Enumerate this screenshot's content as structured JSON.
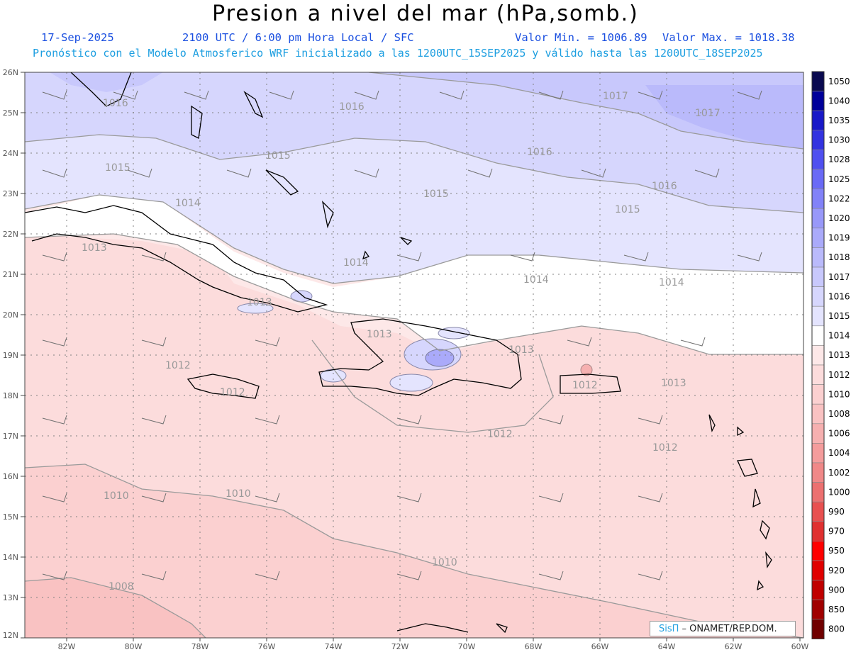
{
  "title": "Presion a nivel del mar (hPa,somb.)",
  "header": {
    "date": "17-Sep-2025",
    "time": "2100 UTC / 6:00 pm Hora Local / SFC",
    "valmin": "Valor Min. = 1006.89",
    "valmax": "Valor Max. = 1018.38",
    "forecast": "Pronóstico con el Modelo Atmosferico WRF inicializado a las 1200UTC_15SEP2025 y válido hasta las  1200UTC_18SEP2025"
  },
  "map": {
    "lat_labels": [
      "26N",
      "25N",
      "24N",
      "23N",
      "22N",
      "21N",
      "20N",
      "19N",
      "18N",
      "17N",
      "16N",
      "15N",
      "14N",
      "13N",
      "12N"
    ],
    "lon_labels": [
      "82W",
      "80W",
      "78W",
      "76W",
      "74W",
      "72W",
      "70W",
      "68W",
      "66W",
      "64W",
      "62W",
      "60W"
    ],
    "lat_range": [
      12,
      26
    ],
    "lon_range": [
      -83,
      -60
    ],
    "isobar_labels": [
      "1016",
      "1016",
      "1017",
      "1017",
      "1015",
      "1015",
      "1016",
      "1016",
      "1014",
      "1015",
      "1015",
      "1013",
      "1014",
      "1014",
      "1014",
      "1013",
      "1013",
      "1013",
      "1012",
      "1012",
      "1013",
      "1012",
      "1012",
      "1012",
      "1010",
      "1010",
      "1010",
      "1008"
    ]
  },
  "colorbar": {
    "labels": [
      "1050",
      "1040",
      "1035",
      "1030",
      "1028",
      "1025",
      "1022",
      "1020",
      "1019",
      "1018",
      "1017",
      "1016",
      "1015",
      "1014",
      "1013",
      "1012",
      "1010",
      "1008",
      "1006",
      "1004",
      "1002",
      "1000",
      "990",
      "970",
      "950",
      "920",
      "900",
      "850",
      "800"
    ],
    "colors": [
      "#0a0a50",
      "#00009a",
      "#1818c8",
      "#3333e0",
      "#5050f0",
      "#6a6af6",
      "#8282f8",
      "#9898f9",
      "#aaaafa",
      "#babafb",
      "#c8c8fc",
      "#d6d6fd",
      "#e4e4fe",
      "#ffffff",
      "#fde8e8",
      "#fcdcdc",
      "#fbd0d0",
      "#f9c2c2",
      "#f6b0b0",
      "#f49c9c",
      "#f08888",
      "#ec7070",
      "#e85050",
      "#e03030",
      "#ff0000",
      "#e00000",
      "#c00000",
      "#a00000",
      "#700000"
    ]
  },
  "credit": {
    "logo": "SisΠ",
    "text": " – ONAMET/REP.DOM."
  }
}
